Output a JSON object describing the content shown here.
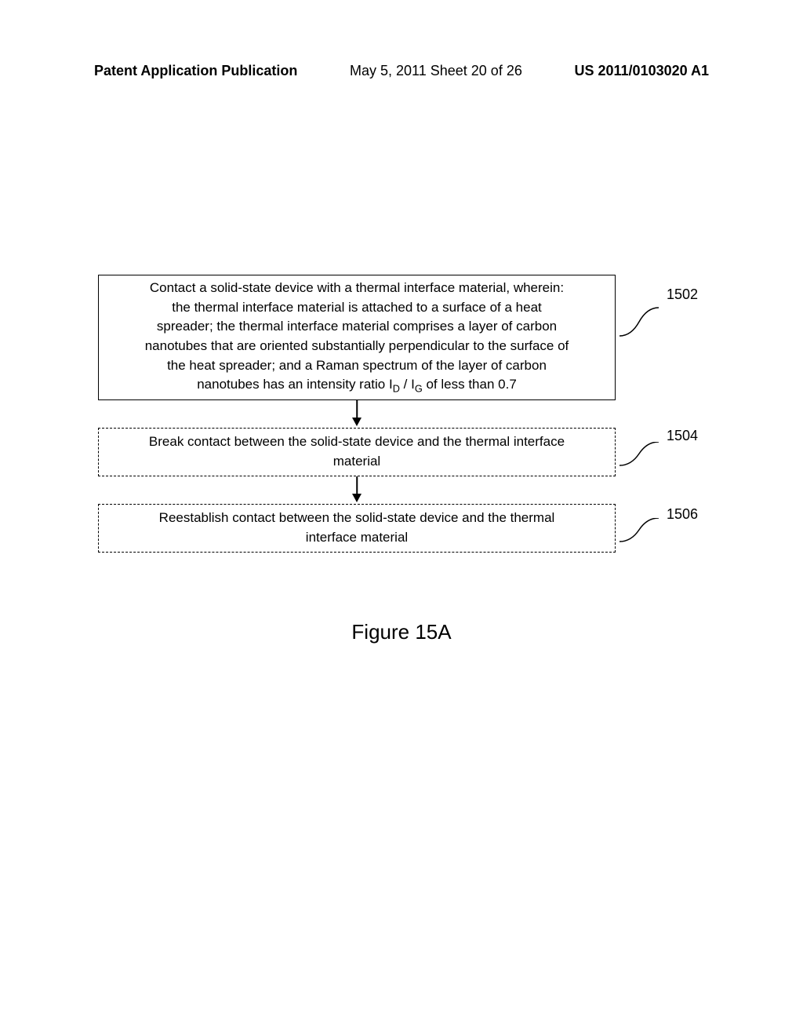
{
  "header": {
    "left": "Patent Application Publication",
    "center": "May 5, 2011  Sheet 20 of 26",
    "right": "US 2011/0103020 A1"
  },
  "flowchart": {
    "boxes": [
      {
        "id": "box-1502",
        "style": "solid",
        "label": "1502",
        "text_lines": [
          "Contact a solid-state device with a thermal interface material, wherein:",
          "the thermal interface material is attached to a surface of a heat",
          "spreader; the thermal interface material comprises a layer of carbon",
          "nanotubes that are oriented substantially perpendicular to the surface of",
          "the heat spreader; and a Raman spectrum of the layer of carbon"
        ],
        "last_line_html": "nanotubes has  an intensity ratio I<sub>D</sub> / I<sub>G</sub> of less than 0.7"
      },
      {
        "id": "box-1504",
        "style": "dashed",
        "label": "1504",
        "text_lines": [
          "Break contact between the solid-state device and the thermal interface",
          "material"
        ],
        "last_line_html": ""
      },
      {
        "id": "box-1506",
        "style": "dashed",
        "label": "1506",
        "text_lines": [
          "Reestablish contact between the solid-state device and the thermal",
          "interface material"
        ],
        "last_line_html": ""
      }
    ]
  },
  "figure_label": "Figure 15A",
  "colors": {
    "background": "#ffffff",
    "border": "#000000",
    "text": "#000000"
  }
}
